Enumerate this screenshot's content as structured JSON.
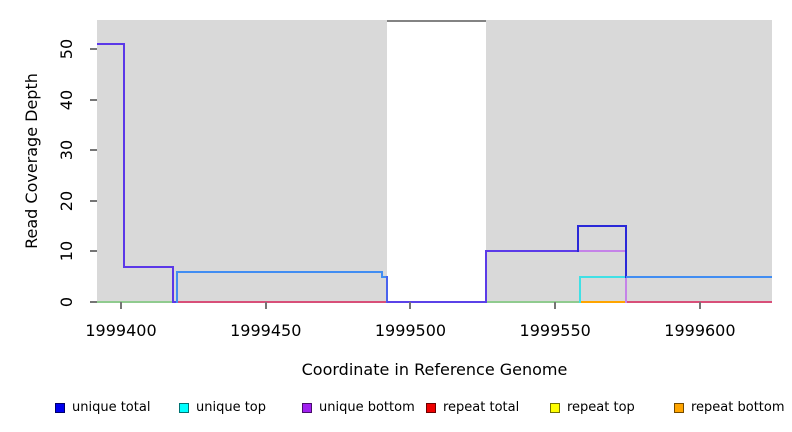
{
  "figure": {
    "ylabel": "Read Coverage Depth",
    "xlabel": "Coordinate in Reference Genome",
    "plot_bg": "#d9d9d9",
    "tick_color": "#757575"
  },
  "chart_data": {
    "type": "line",
    "subtype": "step-coverage-plot",
    "title": "",
    "xlabel": "Coordinate in Reference Genome",
    "ylabel": "Read Coverage Depth",
    "xlim": [
      1999391.7,
      1999624.9
    ],
    "ylim": [
      0,
      55.8
    ],
    "grid": false,
    "legend_position": "bottom",
    "x_ticks": [
      {
        "value": 1999400,
        "label": "1999400"
      },
      {
        "value": 1999450,
        "label": "1999450"
      },
      {
        "value": 1999500,
        "label": "1999500"
      },
      {
        "value": 1999550,
        "label": "1999550"
      },
      {
        "value": 1999600,
        "label": "1999600"
      }
    ],
    "y_ticks": [
      {
        "value": 0,
        "label": "0"
      },
      {
        "value": 10,
        "label": "10"
      },
      {
        "value": 20,
        "label": "20"
      },
      {
        "value": 30,
        "label": "30"
      },
      {
        "value": 40,
        "label": "40"
      },
      {
        "value": 50,
        "label": "50"
      }
    ],
    "no_data_region": {
      "x1": 1999492,
      "x2": 1999526,
      "fill": "#ffffff",
      "top_border": "#838383"
    },
    "series": [
      {
        "name": "unique total",
        "color": "#0000ee",
        "steps": [
          [
            1999392,
            51
          ],
          [
            1999401,
            7
          ],
          [
            1999418,
            0
          ],
          [
            1999419.5,
            6
          ],
          [
            1999490,
            5
          ],
          [
            1999492,
            0
          ],
          [
            1999526,
            10
          ],
          [
            1999558,
            15
          ],
          [
            1999574.5,
            5
          ],
          [
            1999625,
            5
          ]
        ]
      },
      {
        "name": "unique top",
        "color": "#00ffff",
        "steps": [
          [
            1999392,
            0
          ],
          [
            1999558.7,
            5
          ],
          [
            1999574.5,
            0
          ],
          [
            1999625,
            0
          ]
        ]
      },
      {
        "name": "unique bottom",
        "color": "#a020f0",
        "steps": [
          [
            1999392,
            0
          ],
          [
            1999558,
            10
          ],
          [
            1999574.5,
            0
          ],
          [
            1999625,
            0
          ]
        ]
      },
      {
        "name": "repeat total",
        "color": "#ee0000",
        "steps": [
          [
            1999392,
            0
          ],
          [
            1999625,
            0
          ]
        ]
      },
      {
        "name": "repeat top",
        "color": "#ffff00",
        "steps": [
          [
            1999392,
            0
          ],
          [
            1999625,
            0
          ]
        ]
      },
      {
        "name": "repeat bottom",
        "color": "#ffa500",
        "steps": [
          [
            1999392,
            0
          ],
          [
            1999625,
            0
          ]
        ]
      }
    ],
    "rendered_segments": [
      {
        "x1": 1999391.7,
        "y1": 0,
        "x2": 1999417.8,
        "y2": 0,
        "c": "#90cb8f"
      },
      {
        "x1": 1999526,
        "y1": 0,
        "x2": 1999558.7,
        "y2": 0,
        "c": "#90cb8f"
      },
      {
        "x1": 1999419.5,
        "y1": 0,
        "x2": 1999492,
        "y2": 0,
        "c": "#d84f79"
      },
      {
        "x1": 1999574.5,
        "y1": 0,
        "x2": 1999624.9,
        "y2": 0,
        "c": "#d84f79"
      },
      {
        "x1": 1999558.7,
        "y1": 0,
        "x2": 1999574.5,
        "y2": 0,
        "c": "#ffa500"
      },
      {
        "x1": 1999558.7,
        "y1": 0,
        "x2": 1999558.7,
        "y2": 5,
        "c": "#40e0e5"
      },
      {
        "x1": 1999558.7,
        "y1": 5,
        "x2": 1999574.5,
        "y2": 5,
        "c": "#40e0e5"
      },
      {
        "x1": 1999558,
        "y1": 10,
        "x2": 1999574.5,
        "y2": 10,
        "c": "#c583e8"
      },
      {
        "x1": 1999574.5,
        "y1": 10,
        "x2": 1999574.5,
        "y2": 0,
        "c": "#c583e8"
      },
      {
        "x1": 1999391.7,
        "y1": 51,
        "x2": 1999401,
        "y2": 51,
        "c": "#5b38e8"
      },
      {
        "x1": 1999401,
        "y1": 51,
        "x2": 1999401,
        "y2": 7,
        "c": "#5b38e8"
      },
      {
        "x1": 1999401,
        "y1": 7,
        "x2": 1999417.8,
        "y2": 7,
        "c": "#5b38e8"
      },
      {
        "x1": 1999417.8,
        "y1": 7,
        "x2": 1999417.8,
        "y2": 0,
        "c": "#5b38e8"
      },
      {
        "x1": 1999417.8,
        "y1": 0,
        "x2": 1999419.5,
        "y2": 0,
        "c": "#5b38e8"
      },
      {
        "x1": 1999419.5,
        "y1": 0,
        "x2": 1999419.5,
        "y2": 6,
        "c": "#418df2"
      },
      {
        "x1": 1999419.5,
        "y1": 6,
        "x2": 1999490,
        "y2": 6,
        "c": "#418df2"
      },
      {
        "x1": 1999490,
        "y1": 6,
        "x2": 1999490,
        "y2": 5,
        "c": "#418df2"
      },
      {
        "x1": 1999490,
        "y1": 5,
        "x2": 1999492,
        "y2": 5,
        "c": "#418df2"
      },
      {
        "x1": 1999492,
        "y1": 5,
        "x2": 1999492,
        "y2": 0,
        "c": "#4a63ee"
      },
      {
        "x1": 1999492,
        "y1": 0,
        "x2": 1999526,
        "y2": 0,
        "c": "#5b42e8"
      },
      {
        "x1": 1999526,
        "y1": 0,
        "x2": 1999526,
        "y2": 10,
        "c": "#5b3be8"
      },
      {
        "x1": 1999526,
        "y1": 10,
        "x2": 1999558,
        "y2": 10,
        "c": "#5b3be8"
      },
      {
        "x1": 1999558,
        "y1": 10,
        "x2": 1999558,
        "y2": 15,
        "c": "#2a28d8"
      },
      {
        "x1": 1999558,
        "y1": 15,
        "x2": 1999574.5,
        "y2": 15,
        "c": "#2a28d8"
      },
      {
        "x1": 1999574.5,
        "y1": 15,
        "x2": 1999574.5,
        "y2": 5,
        "c": "#2a28d8"
      },
      {
        "x1": 1999574.5,
        "y1": 5,
        "x2": 1999624.9,
        "y2": 5,
        "c": "#418df2"
      }
    ]
  },
  "legend": {
    "items": [
      {
        "label": "unique total",
        "color": "#0000ee"
      },
      {
        "label": "unique top",
        "color": "#00ffff"
      },
      {
        "label": "unique bottom",
        "color": "#a020f0"
      },
      {
        "label": "repeat total",
        "color": "#ee0000"
      },
      {
        "label": "repeat top",
        "color": "#ffff00"
      },
      {
        "label": "repeat bottom",
        "color": "#ffa500"
      }
    ]
  }
}
